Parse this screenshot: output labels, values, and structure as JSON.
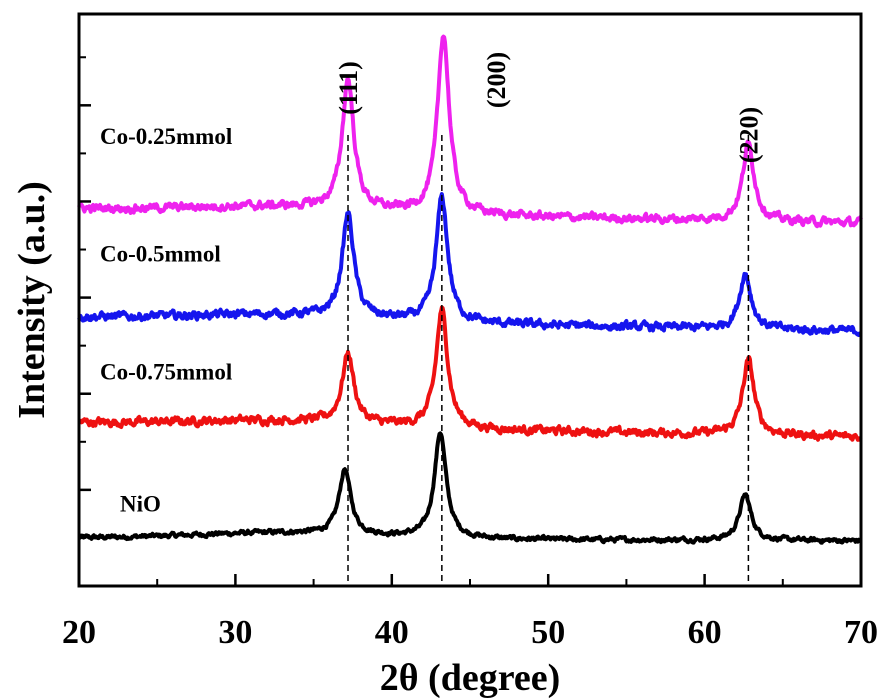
{
  "chart_data": {
    "type": "line",
    "xlabel": "2θ (degree)",
    "ylabel": "Intensity (a.u.)",
    "xlim": [
      20,
      70
    ],
    "xticks": [
      "20",
      "30",
      "40",
      "50",
      "60",
      "70"
    ],
    "y_ticks_labeled": false,
    "grid": false,
    "legend": "inline labels",
    "peak_labels": [
      {
        "text": "(111)",
        "x": 37.2
      },
      {
        "text": "(200)",
        "x": 43.2
      },
      {
        "text": "(220)",
        "x": 62.8
      }
    ],
    "series": [
      {
        "name": "NiO",
        "color": "#000000",
        "baseline": 1.0,
        "peaks": [
          {
            "x": 37.0,
            "height": 1.35
          },
          {
            "x": 43.1,
            "height": 2.2
          },
          {
            "x": 62.6,
            "height": 0.95
          }
        ]
      },
      {
        "name": "Co-0.75mmol",
        "color": "#ee1111",
        "baseline": 3.4,
        "peaks": [
          {
            "x": 37.2,
            "height": 1.45
          },
          {
            "x": 43.2,
            "height": 2.45
          },
          {
            "x": 62.8,
            "height": 1.55
          }
        ]
      },
      {
        "name": "Co-0.5mmol",
        "color": "#1515ee",
        "baseline": 5.6,
        "peaks": [
          {
            "x": 37.2,
            "height": 2.15
          },
          {
            "x": 43.2,
            "height": 2.6
          },
          {
            "x": 62.6,
            "height": 1.15
          }
        ]
      },
      {
        "name": "Co-0.25mmol",
        "color": "#ee22ee",
        "baseline": 7.85,
        "peaks": [
          {
            "x": 37.2,
            "height": 2.7
          },
          {
            "x": 43.3,
            "height": 3.75
          },
          {
            "x": 62.8,
            "height": 1.6
          }
        ]
      }
    ]
  }
}
